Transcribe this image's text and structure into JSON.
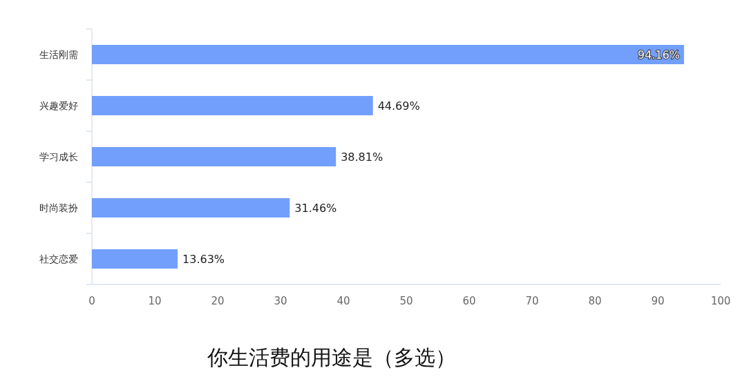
{
  "chart_data": {
    "type": "bar",
    "orientation": "horizontal",
    "title": "你生活费的用途是（多选）",
    "categories": [
      "生活刚需",
      "兴趣爱好",
      "学习成长",
      "时尚装扮",
      "社交恋爱"
    ],
    "values": [
      94.16,
      44.69,
      38.81,
      31.46,
      13.63
    ],
    "value_labels": [
      "94.16%",
      "44.69%",
      "38.81%",
      "31.46%",
      "13.63%"
    ],
    "color": "#729ffc",
    "xlim": [
      0,
      100
    ],
    "xticks": [
      0,
      10,
      20,
      30,
      40,
      50,
      60,
      70,
      80,
      90,
      100
    ],
    "grid": false
  }
}
